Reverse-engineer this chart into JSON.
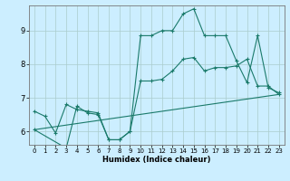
{
  "xlabel": "Humidex (Indice chaleur)",
  "bg_color": "#cceeff",
  "line_color": "#1a7a6a",
  "grid_color": "#aacccc",
  "xlim": [
    -0.5,
    23.5
  ],
  "ylim": [
    5.6,
    9.75
  ],
  "xticks": [
    0,
    1,
    2,
    3,
    4,
    5,
    6,
    7,
    8,
    9,
    10,
    11,
    12,
    13,
    14,
    15,
    16,
    17,
    18,
    19,
    20,
    21,
    22,
    23
  ],
  "yticks": [
    6,
    7,
    8,
    9
  ],
  "line1_x": [
    0,
    1,
    2,
    3,
    4,
    5,
    6,
    7,
    8,
    9,
    10,
    11,
    12,
    13,
    14,
    15,
    16,
    17,
    18,
    19,
    20,
    21,
    22,
    23
  ],
  "line1_y": [
    6.6,
    6.45,
    5.95,
    6.8,
    6.65,
    6.6,
    6.55,
    5.75,
    5.75,
    6.0,
    8.85,
    8.85,
    9.0,
    9.0,
    9.5,
    9.65,
    8.85,
    8.85,
    8.85,
    8.1,
    7.45,
    8.85,
    7.3,
    7.15
  ],
  "line2_x": [
    0,
    3,
    4,
    5,
    6,
    7,
    8,
    9,
    10,
    11,
    12,
    13,
    14,
    15,
    16,
    17,
    18,
    19,
    20,
    21,
    22,
    23
  ],
  "line2_y": [
    6.05,
    5.5,
    6.75,
    6.55,
    6.5,
    5.75,
    5.75,
    6.0,
    7.5,
    7.5,
    7.55,
    7.8,
    8.15,
    8.2,
    7.8,
    7.9,
    7.9,
    7.95,
    8.15,
    7.35,
    7.35,
    7.1
  ],
  "line3_x": [
    0,
    23
  ],
  "line3_y": [
    6.05,
    7.1
  ],
  "marker": "+",
  "markersize": 3,
  "linewidth": 0.8,
  "tick_fontsize_x": 5,
  "tick_fontsize_y": 6,
  "xlabel_fontsize": 6
}
